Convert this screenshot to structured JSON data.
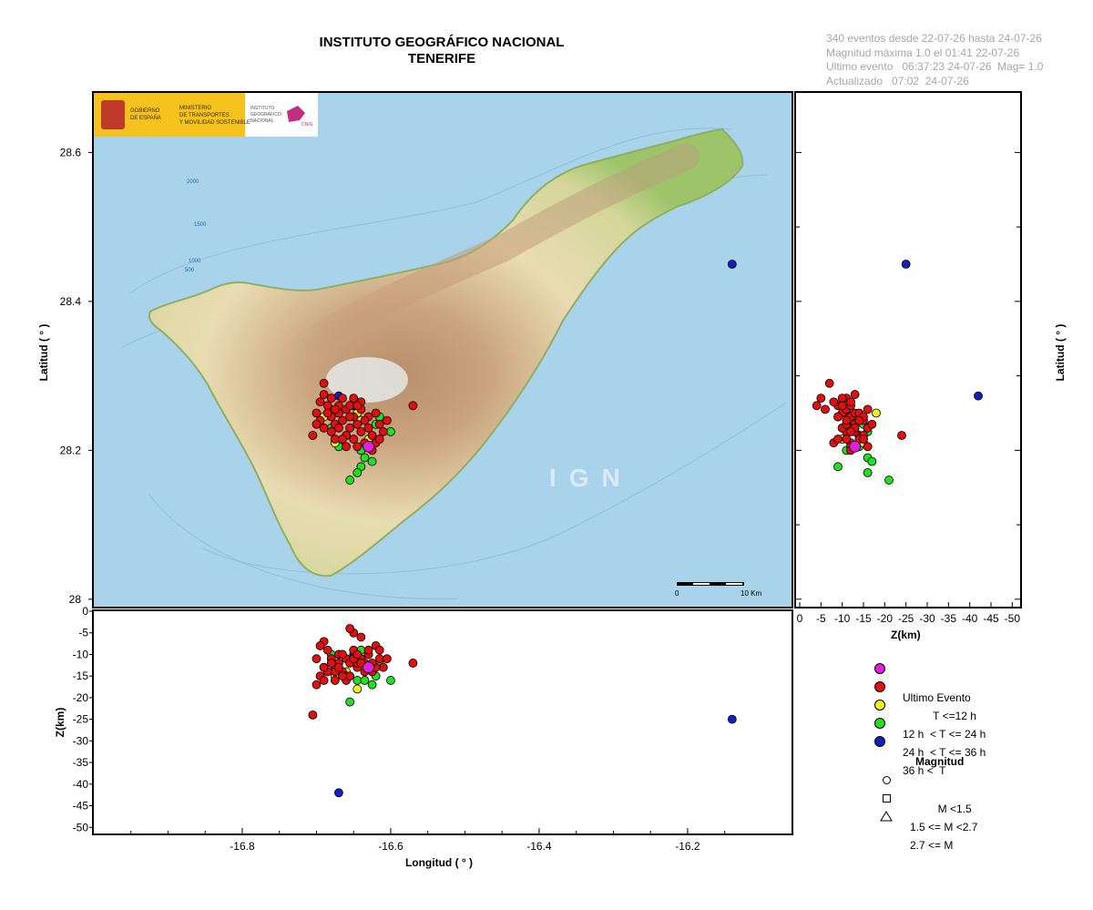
{
  "header": {
    "title_line1": "INSTITUTO GEOGRÁFICO NACIONAL",
    "title_line2": "TENERIFE"
  },
  "info": {
    "line1": "340 eventos desde 22-07-26 hasta 24-07-26",
    "line2": "Magnitud máxima 1.0 el 01:41 22-07-26",
    "line3": "Ultimo evento   06:37:23 24-07-26  Mag= 1.0",
    "line4": "Actualizado   07:02  24-07-26"
  },
  "logo": {
    "gob_line1": "GOBIERNO",
    "gob_line2": "DE ESPAÑA",
    "min_line1": "MINISTERIO",
    "min_line2": "DE TRANSPORTES",
    "min_line3": "Y MOVILIDAD SOSTENIBLE",
    "ign_line1": "INSTITUTO",
    "ign_line2": "GEOGRÁFICO",
    "ign_line3": "NACIONAL",
    "cnig": "CNIG"
  },
  "map": {
    "watermark": "IGN",
    "scale_left": "0",
    "scale_right": "10 Km",
    "contours": [
      "2000",
      "1500",
      "1000",
      "500"
    ],
    "sea_color": "#a9d3ea",
    "land_low_color": "#9ec46a",
    "land_mid_color": "#e9dcb3",
    "land_high_color": "#c69b76"
  },
  "axes": {
    "lat_label": "Latitud ( ° )",
    "lat_ticks": [
      "28.6",
      "28.4",
      "28.2",
      "28"
    ],
    "lon_label": "Longitud ( ° )",
    "lon_ticks": [
      "-16.8",
      "-16.6",
      "-16.4",
      "-16.2"
    ],
    "z_label": "Z(km)",
    "z_ticks": [
      "0",
      "-5",
      "-10",
      "-15",
      "-20",
      "-25",
      "-30",
      "-35",
      "-40",
      "-45",
      "-50"
    ],
    "zx_ticks": [
      "0",
      "-5",
      "-10",
      "-15",
      "-20",
      "-25",
      "-30",
      "-35",
      "-40",
      "-45",
      "-50"
    ]
  },
  "legend": {
    "ultimo": "Ultimo Evento",
    "t12": "          T <=12 h",
    "t24": "12 h  < T <= 24 h",
    "t36": "24 h  < T <= 36 h",
    "t36plus": "36 h <  T",
    "mag_title": "Magnitud",
    "m1": "           M <1.5",
    "m2": "1.5 <= M <2.7",
    "m3": "2.7 <= M",
    "colors": {
      "ultimo": "#e020e0",
      "t12": "#e01010",
      "t24": "#f0f020",
      "t36": "#20e020",
      "t36plus": "#1020c0"
    }
  },
  "chart_data": {
    "type": "scatter",
    "x_range": [
      -17.0,
      -16.06
    ],
    "y_range": [
      27.99,
      28.68
    ],
    "z_range": [
      0,
      -51
    ],
    "x_ticks": [
      -16.8,
      -16.6,
      -16.4,
      -16.2
    ],
    "y_ticks": [
      28.0,
      28.2,
      28.4,
      28.6
    ],
    "z_ticks": [
      0,
      -5,
      -10,
      -15,
      -20,
      -25,
      -30,
      -35,
      -40,
      -45,
      -50
    ],
    "events_total": 340,
    "series": [
      {
        "name": "36 h <  T",
        "color": "#1020c0",
        "points": [
          {
            "lon": -16.14,
            "lat": 28.45,
            "z": -25
          },
          {
            "lon": -16.67,
            "lat": 28.273,
            "z": -42
          },
          {
            "lon": -16.65,
            "lat": 28.26,
            "z": -10
          }
        ]
      },
      {
        "name": "24 h  < T <= 36 h",
        "color": "#20e020",
        "points": [
          {
            "lon": -16.64,
            "lat": 28.178,
            "z": -9
          },
          {
            "lon": -16.645,
            "lat": 28.17,
            "z": -16
          },
          {
            "lon": -16.655,
            "lat": 28.16,
            "z": -21
          },
          {
            "lon": -16.635,
            "lat": 28.19,
            "z": -16
          },
          {
            "lon": -16.6,
            "lat": 28.225,
            "z": -16
          },
          {
            "lon": -16.68,
            "lat": 28.23,
            "z": -10
          },
          {
            "lon": -16.625,
            "lat": 28.185,
            "z": -17
          },
          {
            "lon": -16.615,
            "lat": 28.245,
            "z": -12
          },
          {
            "lon": -16.67,
            "lat": 28.205,
            "z": -14
          },
          {
            "lon": -16.64,
            "lat": 28.2,
            "z": -11
          },
          {
            "lon": -16.62,
            "lat": 28.235,
            "z": -15
          }
        ]
      },
      {
        "name": "12 h  < T <= 24 h",
        "color": "#f0f020",
        "points": [
          {
            "lon": -16.675,
            "lat": 28.21,
            "z": -15
          },
          {
            "lon": -16.645,
            "lat": 28.25,
            "z": -18
          },
          {
            "lon": -16.69,
            "lat": 28.245,
            "z": -13
          },
          {
            "lon": -16.64,
            "lat": 28.24,
            "z": -12
          },
          {
            "lon": -16.66,
            "lat": 28.22,
            "z": -14
          },
          {
            "lon": -16.63,
            "lat": 28.215,
            "z": -10
          }
        ]
      },
      {
        "name": "T <=12 h",
        "color": "#e01010",
        "points": [
          {
            "lon": -16.705,
            "lat": 28.22,
            "z": -24
          },
          {
            "lon": -16.69,
            "lat": 28.29,
            "z": -7
          },
          {
            "lon": -16.57,
            "lat": 28.26,
            "z": -12
          },
          {
            "lon": -16.7,
            "lat": 28.25,
            "z": -11
          },
          {
            "lon": -16.695,
            "lat": 28.24,
            "z": -15
          },
          {
            "lon": -16.685,
            "lat": 28.26,
            "z": -9
          },
          {
            "lon": -16.68,
            "lat": 28.245,
            "z": -12
          },
          {
            "lon": -16.675,
            "lat": 28.235,
            "z": -13
          },
          {
            "lon": -16.67,
            "lat": 28.25,
            "z": -10
          },
          {
            "lon": -16.665,
            "lat": 28.24,
            "z": -14
          },
          {
            "lon": -16.66,
            "lat": 28.255,
            "z": -11
          },
          {
            "lon": -16.655,
            "lat": 28.23,
            "z": -12
          },
          {
            "lon": -16.65,
            "lat": 28.245,
            "z": -9
          },
          {
            "lon": -16.645,
            "lat": 28.235,
            "z": -13
          },
          {
            "lon": -16.64,
            "lat": 28.225,
            "z": -11
          },
          {
            "lon": -16.635,
            "lat": 28.21,
            "z": -12
          },
          {
            "lon": -16.63,
            "lat": 28.23,
            "z": -10
          },
          {
            "lon": -16.625,
            "lat": 28.22,
            "z": -14
          },
          {
            "lon": -16.62,
            "lat": 28.21,
            "z": -8
          },
          {
            "lon": -16.615,
            "lat": 28.235,
            "z": -11
          },
          {
            "lon": -16.61,
            "lat": 28.225,
            "z": -13
          },
          {
            "lon": -16.66,
            "lat": 28.22,
            "z": -15
          },
          {
            "lon": -16.67,
            "lat": 28.26,
            "z": -12
          },
          {
            "lon": -16.68,
            "lat": 28.27,
            "z": -11
          },
          {
            "lon": -16.69,
            "lat": 28.23,
            "z": -16
          },
          {
            "lon": -16.65,
            "lat": 28.27,
            "z": -5
          },
          {
            "lon": -16.655,
            "lat": 28.26,
            "z": -4
          },
          {
            "lon": -16.64,
            "lat": 28.255,
            "z": -6
          },
          {
            "lon": -16.675,
            "lat": 28.215,
            "z": -14
          },
          {
            "lon": -16.645,
            "lat": 28.205,
            "z": -12
          },
          {
            "lon": -16.63,
            "lat": 28.245,
            "z": -9
          },
          {
            "lon": -16.62,
            "lat": 28.25,
            "z": -13
          },
          {
            "lon": -16.665,
            "lat": 28.27,
            "z": -10
          },
          {
            "lon": -16.685,
            "lat": 28.25,
            "z": -14
          },
          {
            "lon": -16.695,
            "lat": 28.265,
            "z": -8
          },
          {
            "lon": -16.66,
            "lat": 28.205,
            "z": -16
          },
          {
            "lon": -16.65,
            "lat": 28.215,
            "z": -11
          },
          {
            "lon": -16.64,
            "lat": 28.265,
            "z": -12
          },
          {
            "lon": -16.67,
            "lat": 28.23,
            "z": -13
          },
          {
            "lon": -16.68,
            "lat": 28.225,
            "z": -12
          },
          {
            "lon": -16.655,
            "lat": 28.245,
            "z": -15
          },
          {
            "lon": -16.645,
            "lat": 28.26,
            "z": -10
          },
          {
            "lon": -16.635,
            "lat": 28.24,
            "z": -14
          },
          {
            "lon": -16.625,
            "lat": 28.2,
            "z": -12
          },
          {
            "lon": -16.615,
            "lat": 28.215,
            "z": -9
          },
          {
            "lon": -16.605,
            "lat": 28.24,
            "z": -11
          },
          {
            "lon": -16.69,
            "lat": 28.275,
            "z": -13
          },
          {
            "lon": -16.7,
            "lat": 28.235,
            "z": -17
          },
          {
            "lon": -16.675,
            "lat": 28.255,
            "z": -16
          },
          {
            "lon": -16.665,
            "lat": 28.215,
            "z": -15
          }
        ]
      },
      {
        "name": "Ultimo Evento",
        "color": "#e020e0",
        "points": [
          {
            "lon": -16.63,
            "lat": 28.205,
            "z": -13
          }
        ]
      }
    ]
  }
}
